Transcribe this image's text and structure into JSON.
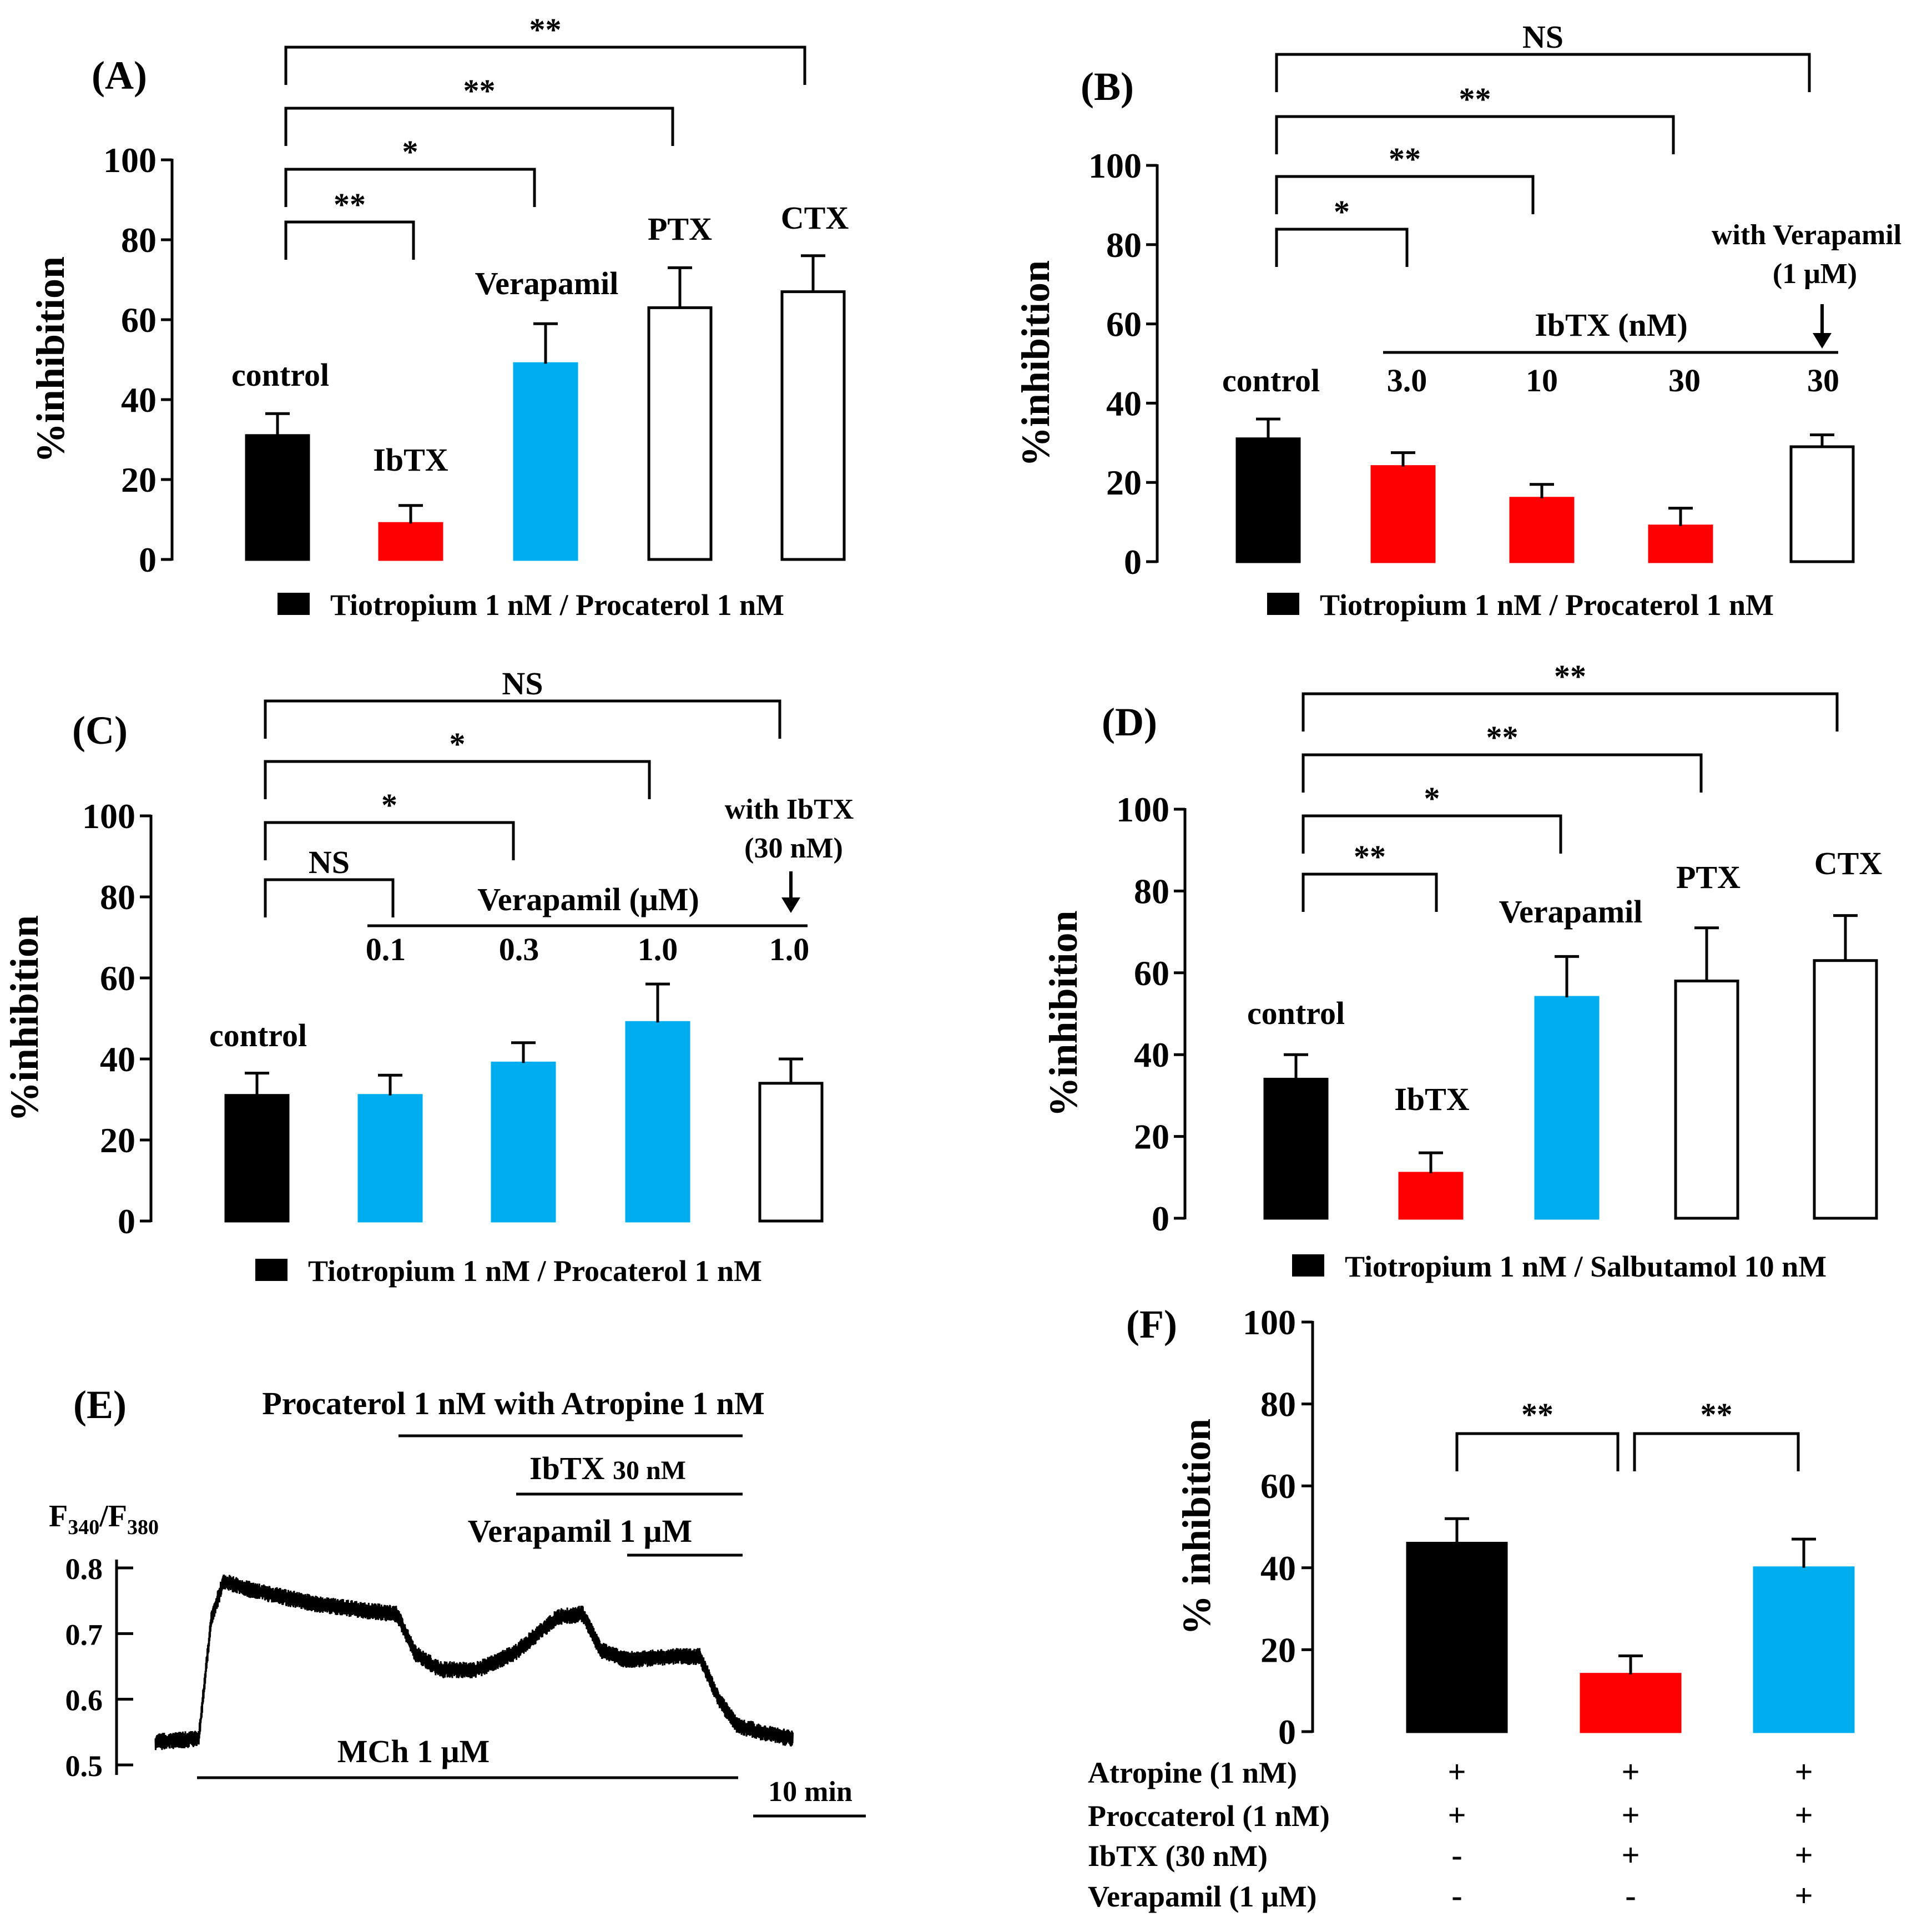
{
  "colors": {
    "black": "#000000",
    "red": "#ff0000",
    "blue": "#00aeef",
    "white": "#ffffff"
  },
  "chart_data": [
    {
      "panel": "(A)",
      "type": "bar",
      "ylabel": "%inhibition",
      "ylim": [
        0,
        100
      ],
      "yticks": [
        "0",
        "20",
        "40",
        "60",
        "80",
        "100"
      ],
      "categories": [
        "control",
        "IbTX",
        "Verapamil",
        "PTX",
        "CTX"
      ],
      "values": [
        31,
        9,
        49,
        63,
        67
      ],
      "errors": [
        5.5,
        4.5,
        10,
        10,
        9
      ],
      "fills": [
        "black",
        "red",
        "blue",
        "white",
        "white"
      ],
      "legend": "Tiotropium  1 nM / Procaterol 1 nM",
      "significance": [
        {
          "to": 1,
          "label": "**"
        },
        {
          "to": 2,
          "label": "*"
        },
        {
          "to": 3,
          "label": "**"
        },
        {
          "to": 4,
          "label": "**"
        }
      ]
    },
    {
      "panel": "(B)",
      "type": "bar",
      "ylabel": "%inhibition",
      "ylim": [
        0,
        100
      ],
      "yticks": [
        "0",
        "20",
        "40",
        "60",
        "80",
        "100"
      ],
      "categories": [
        "control",
        "3.0",
        "10",
        "30",
        "30"
      ],
      "values": [
        31,
        24,
        16,
        9,
        29
      ],
      "errors": [
        5,
        3.5,
        3.5,
        4.5,
        3
      ],
      "fills": [
        "black",
        "red",
        "red",
        "red",
        "white"
      ],
      "group_label": "IbTX (nM)",
      "note_line1": "with  Verapamil",
      "note_line2": "(1 μM)",
      "legend": "Tiotropium  1 nM / Procaterol 1 nM",
      "significance": [
        {
          "to": 1,
          "label": "*"
        },
        {
          "to": 2,
          "label": "**"
        },
        {
          "to": 3,
          "label": "**"
        },
        {
          "to": 4,
          "label": "NS"
        }
      ]
    },
    {
      "panel": "(C)",
      "type": "bar",
      "ylabel": "%inhibition",
      "ylim": [
        0,
        100
      ],
      "yticks": [
        "0",
        "20",
        "40",
        "60",
        "80",
        "100"
      ],
      "categories": [
        "control",
        "0.1",
        "0.3",
        "1.0",
        "1.0"
      ],
      "values": [
        31,
        31,
        39,
        49,
        34
      ],
      "errors": [
        5.5,
        5,
        5,
        9.5,
        6
      ],
      "fills": [
        "black",
        "blue",
        "blue",
        "blue",
        "white"
      ],
      "group_label": "Verapamil (μM)",
      "note_line1": "with IbTX",
      "note_line2": "(30 nM)",
      "legend": "Tiotropium 1 nM / Procaterol 1 nM",
      "significance": [
        {
          "to": 1,
          "label": "NS"
        },
        {
          "to": 2,
          "label": "*"
        },
        {
          "to": 3,
          "label": "*"
        },
        {
          "to": 4,
          "label": "NS"
        }
      ]
    },
    {
      "panel": "(D)",
      "type": "bar",
      "ylabel": "%inhibition",
      "ylim": [
        0,
        100
      ],
      "yticks": [
        "0",
        "20",
        "40",
        "60",
        "80",
        "100"
      ],
      "categories": [
        "control",
        "IbTX",
        "Verapamil",
        "PTX",
        "CTX"
      ],
      "values": [
        34,
        11,
        54,
        58,
        63
      ],
      "errors": [
        6,
        5,
        10,
        13,
        11
      ],
      "fills": [
        "black",
        "red",
        "blue",
        "white",
        "white"
      ],
      "legend": "Tiotropium 1 nM / Salbutamol 10 nM",
      "significance": [
        {
          "to": 1,
          "label": "**"
        },
        {
          "to": 2,
          "label": "*"
        },
        {
          "to": 3,
          "label": "**"
        },
        {
          "to": 4,
          "label": "**"
        }
      ]
    },
    {
      "panel": "(E)",
      "type": "line",
      "ylabel": "F340/F380",
      "ylim": [
        0.5,
        0.8
      ],
      "yticks": [
        "0.5",
        "0.6",
        "0.7",
        "0.8"
      ],
      "x_units": "min",
      "scale_bar": "10 min",
      "trace_breakpoints": [
        [
          0,
          0.535
        ],
        [
          3.5,
          0.54
        ],
        [
          4.5,
          0.72
        ],
        [
          5.5,
          0.78
        ],
        [
          8,
          0.765
        ],
        [
          13,
          0.745
        ],
        [
          17,
          0.735
        ],
        [
          19.5,
          0.73
        ],
        [
          21,
          0.67
        ],
        [
          23,
          0.645
        ],
        [
          26,
          0.645
        ],
        [
          29,
          0.67
        ],
        [
          32.5,
          0.725
        ],
        [
          34.5,
          0.73
        ],
        [
          36,
          0.675
        ],
        [
          38,
          0.66
        ],
        [
          42,
          0.665
        ],
        [
          44,
          0.665
        ],
        [
          45.5,
          0.6
        ],
        [
          47,
          0.56
        ],
        [
          50,
          0.545
        ],
        [
          51.5,
          0.54
        ]
      ],
      "bars": {
        "procaterol": "Procaterol 1 nM with Atropine 1 nM",
        "ibtx_name": "IbTX",
        "ibtx_conc": "30 nM",
        "verapamil": "Verapamil 1 μM",
        "mch": "MCh 1 μM"
      }
    },
    {
      "panel": "(F)",
      "type": "bar",
      "ylabel": "% inhibition",
      "ylim": [
        0,
        100
      ],
      "yticks": [
        "0",
        "20",
        "40",
        "60",
        "80",
        "100"
      ],
      "values": [
        46,
        14,
        40
      ],
      "errors": [
        6,
        4.5,
        7
      ],
      "fills": [
        "black",
        "red",
        "blue"
      ],
      "significance": [
        {
          "from": 0,
          "to": 1,
          "label": "**"
        },
        {
          "from": 1,
          "to": 2,
          "label": "**"
        }
      ],
      "conditions": [
        {
          "label": "Atropine (1 nM)",
          "signs": [
            "+",
            "+",
            "+"
          ]
        },
        {
          "label": "Proccaterol (1 nM)",
          "signs": [
            "+",
            "+",
            "+"
          ]
        },
        {
          "label": "IbTX (30 nM)",
          "signs": [
            "-",
            "+",
            "+"
          ]
        },
        {
          "label": "Verapamil (1 μM)",
          "signs": [
            "-",
            "-",
            "+"
          ]
        }
      ]
    }
  ]
}
